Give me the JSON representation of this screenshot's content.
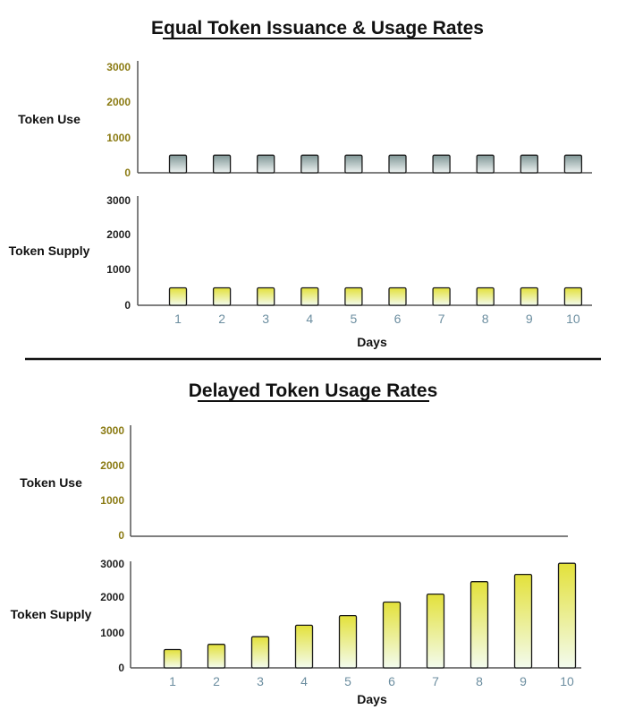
{
  "colors": {
    "use_bar_top": "#7f9696",
    "use_bar_bottom": "#eef3f2",
    "supply_bar_top": "#e3e13a",
    "supply_bar_bottom": "#f3fbee",
    "use_tick_color": "#8a7a12",
    "x_tick_color": "#6c8ea0",
    "axis_color": "#555555"
  },
  "chart_data": [
    {
      "type": "bar",
      "title": "Equal Token Issuance & Usage Rates",
      "xlabel": "Days",
      "categories": [
        "1",
        "2",
        "3",
        "4",
        "5",
        "6",
        "7",
        "8",
        "9",
        "10"
      ],
      "series": [
        {
          "name": "Token Use",
          "values": [
            500,
            500,
            500,
            500,
            500,
            500,
            500,
            500,
            500,
            500
          ]
        },
        {
          "name": "Token Supply",
          "values": [
            500,
            500,
            500,
            500,
            500,
            500,
            500,
            500,
            500,
            500
          ]
        }
      ],
      "ylim": [
        0,
        3000
      ],
      "yticks": [
        "0",
        "1000",
        "2000",
        "3000"
      ],
      "grid": false
    },
    {
      "type": "bar",
      "title": "Delayed Token Usage Rates",
      "xlabel": "Days",
      "categories": [
        "1",
        "2",
        "3",
        "4",
        "5",
        "6",
        "7",
        "8",
        "9",
        "10"
      ],
      "series": [
        {
          "name": "Token Use",
          "values": [
            0,
            0,
            0,
            0,
            0,
            0,
            0,
            0,
            0,
            0
          ]
        },
        {
          "name": "Token Supply",
          "values": [
            530,
            680,
            900,
            1230,
            1510,
            1900,
            2130,
            2490,
            2700,
            3020
          ]
        }
      ],
      "ylim": [
        0,
        3000
      ],
      "yticks": [
        "0",
        "1000",
        "2000",
        "3000"
      ],
      "grid": false
    }
  ]
}
